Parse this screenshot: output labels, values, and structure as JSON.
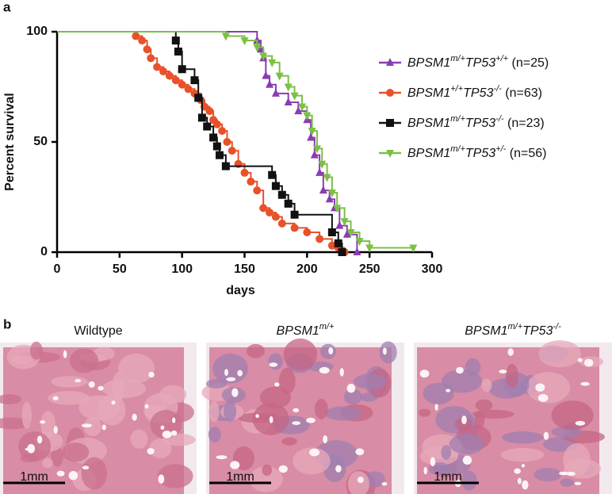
{
  "panel_a_label": "a",
  "chart_data": {
    "type": "step",
    "xlabel": "days",
    "ylabel": "Percent survival",
    "xlim": [
      0,
      300
    ],
    "ylim": [
      0,
      100
    ],
    "xticks": [
      0,
      50,
      100,
      150,
      200,
      250,
      300
    ],
    "yticks": [
      0,
      50,
      100
    ],
    "legend": "upper right",
    "series": [
      {
        "name": [
          "BPSM1",
          "m/+",
          "TP53",
          "+/+",
          " (n=25)"
        ],
        "color": "#8a3db3",
        "marker": "triangle",
        "x": [
          0,
          160,
          163,
          165,
          167,
          170,
          175,
          185,
          193,
          200,
          203,
          206,
          210,
          213,
          218,
          222,
          226,
          232,
          240
        ],
        "values": [
          100,
          96,
          92,
          88,
          80,
          76,
          72,
          68,
          64,
          60,
          52,
          44,
          36,
          28,
          24,
          20,
          12,
          8,
          0
        ]
      },
      {
        "name": [
          "BPSM1",
          "+/+",
          "TP53",
          "-/-",
          " (n=63)"
        ],
        "color": "#e8512a",
        "marker": "circle",
        "x": [
          0,
          63,
          68,
          72,
          75,
          80,
          85,
          90,
          95,
          100,
          105,
          110,
          115,
          118,
          122,
          125,
          128,
          132,
          136,
          140,
          145,
          150,
          155,
          160,
          165,
          170,
          175,
          180,
          190,
          200,
          210,
          220,
          225,
          230
        ],
        "values": [
          100,
          98,
          96,
          92,
          88,
          84,
          82,
          80,
          78,
          76,
          74,
          72,
          69,
          66,
          64,
          60,
          58,
          55,
          50,
          46,
          40,
          36,
          32,
          28,
          20,
          18,
          16,
          13,
          11,
          9,
          6,
          3,
          2,
          0
        ]
      },
      {
        "name": [
          "BPSM1",
          "m/+",
          "TP53",
          "-/-",
          " (n=23)"
        ],
        "color": "#111111",
        "marker": "square",
        "x": [
          0,
          95,
          97,
          100,
          110,
          113,
          116,
          120,
          125,
          128,
          130,
          135,
          172,
          175,
          180,
          185,
          190,
          220,
          225,
          228
        ],
        "values": [
          100,
          96,
          91,
          83,
          78,
          70,
          61,
          57,
          52,
          48,
          44,
          39,
          35,
          30,
          26,
          22,
          17,
          9,
          4,
          0
        ]
      },
      {
        "name": [
          "BPSM1",
          "m/+",
          "TP53",
          "+/-",
          " (n=56)"
        ],
        "color": "#7bc043",
        "marker": "down-triangle",
        "x": [
          0,
          135,
          150,
          160,
          165,
          172,
          178,
          185,
          190,
          196,
          200,
          204,
          208,
          212,
          216,
          220,
          224,
          230,
          235,
          242,
          250,
          285
        ],
        "values": [
          100,
          98,
          96,
          93,
          89,
          86,
          80,
          75,
          71,
          66,
          62,
          55,
          47,
          40,
          34,
          27,
          20,
          14,
          9,
          5,
          2,
          2
        ]
      }
    ]
  },
  "panel_b": {
    "label": "b",
    "images": [
      {
        "title": [
          "Wildtype"
        ],
        "scale": "1mm"
      },
      {
        "title": [
          "BPSM1",
          "m/+"
        ],
        "scale": "1mm"
      },
      {
        "title": [
          "BPSM1",
          "m/+",
          "TP53",
          "-/-"
        ],
        "scale": "1mm"
      }
    ]
  }
}
